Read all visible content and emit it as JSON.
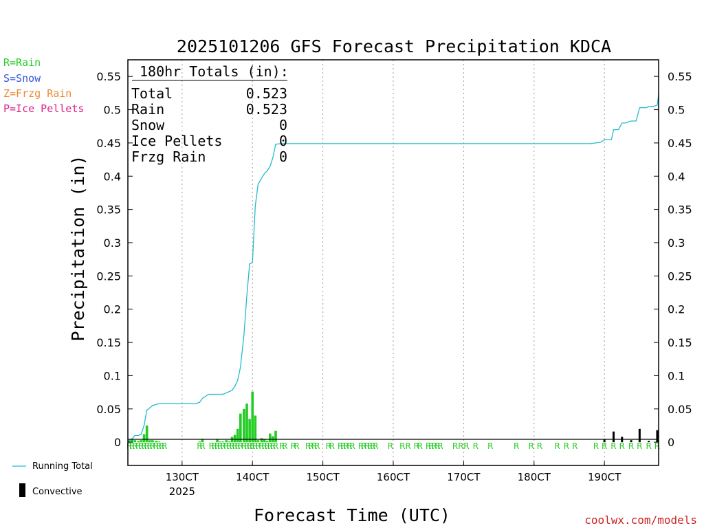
{
  "chart_data": {
    "type": "bar+line",
    "title": "2025101206 GFS Forecast Precipitation KDCA",
    "xlabel": "Forecast Time (UTC)",
    "ylabel": "Precipitation (in)",
    "ylim": [
      -0.035,
      0.575
    ],
    "xlim_days": [
      12.23,
      19.77
    ],
    "yticks": [
      0,
      0.05,
      0.1,
      0.15,
      0.2,
      0.25,
      0.3,
      0.35,
      0.4,
      0.45,
      0.5,
      0.55
    ],
    "ytick_labels": [
      "0",
      "0.05",
      "0.1",
      "0.15",
      "0.2",
      "0.25",
      "0.3",
      "0.35",
      "0.4",
      "0.45",
      "0.5",
      "0.55"
    ],
    "xticks": [
      {
        "day": 13,
        "label": "130CT",
        "sub": "2025"
      },
      {
        "day": 14,
        "label": "140CT",
        "sub": ""
      },
      {
        "day": 15,
        "label": "150CT",
        "sub": ""
      },
      {
        "day": 16,
        "label": "160CT",
        "sub": ""
      },
      {
        "day": 17,
        "label": "170CT",
        "sub": ""
      },
      {
        "day": 18,
        "label": "180CT",
        "sub": ""
      },
      {
        "day": 19,
        "label": "190CT",
        "sub": ""
      }
    ],
    "legend_types": [
      {
        "label": "R=Rain",
        "color": "#22cc22"
      },
      {
        "label": "S=Snow",
        "color": "#3355dd"
      },
      {
        "label": "Z=Frzg Rain",
        "color": "#ee8833"
      },
      {
        "label": "P=Ice Pellets",
        "color": "#dd2288"
      }
    ],
    "legend_series": [
      {
        "label": "Running Total",
        "color": "#22bbcc"
      },
      {
        "label": "Convective",
        "color": "#000000"
      }
    ],
    "totals": {
      "heading": "180hr Totals (in):",
      "rows": [
        {
          "label": "Total",
          "value": "0.523"
        },
        {
          "label": "Rain",
          "value": "0.523"
        },
        {
          "label": "Snow",
          "value": "0"
        },
        {
          "label": "Ice Pellets",
          "value": "0"
        },
        {
          "label": "Frzg Rain",
          "value": "0"
        }
      ]
    },
    "precip_bars": {
      "x_days": [
        12.25,
        12.29,
        12.33,
        12.38,
        12.42,
        12.46,
        12.5,
        12.54,
        12.58,
        12.63,
        12.67,
        13.25,
        13.29,
        13.5,
        13.54,
        13.58,
        13.63,
        13.67,
        13.71,
        13.75,
        13.79,
        13.83,
        13.88,
        13.92,
        13.96,
        14.0,
        14.04,
        14.08,
        14.13,
        14.17,
        14.21,
        14.25,
        14.29,
        14.33
      ],
      "values": [
        0.003,
        0.004,
        0.003,
        0.002,
        0.003,
        0.012,
        0.025,
        0.003,
        0.003,
        0.002,
        0.001,
        0.001,
        0.005,
        0.004,
        0.001,
        0.001,
        0.003,
        0.001,
        0.008,
        0.011,
        0.02,
        0.043,
        0.05,
        0.058,
        0.035,
        0.076,
        0.04,
        0.003,
        0.006,
        0.004,
        0.002,
        0.013,
        0.009,
        0.017
      ]
    },
    "convective_bars": {
      "x_days": [
        19.0,
        19.13,
        19.25,
        19.38,
        19.5,
        19.63,
        19.75
      ],
      "values": [
        0.004,
        0.016,
        0.008,
        0.003,
        0.02,
        0.002,
        0.018
      ]
    },
    "running_total": {
      "x_days": [
        12.23,
        12.29,
        12.33,
        12.38,
        12.42,
        12.46,
        12.5,
        12.58,
        12.67,
        12.75,
        12.83,
        13.0,
        13.13,
        13.2,
        13.25,
        13.29,
        13.38,
        13.5,
        13.58,
        13.67,
        13.71,
        13.75,
        13.79,
        13.83,
        13.88,
        13.92,
        13.96,
        14.0,
        14.04,
        14.08,
        14.13,
        14.17,
        14.21,
        14.25,
        14.29,
        14.33,
        14.4,
        15.0,
        16.0,
        17.0,
        18.0,
        18.8,
        18.95,
        19.0,
        19.1,
        19.13,
        19.2,
        19.25,
        19.3,
        19.38,
        19.45,
        19.5,
        19.6,
        19.63,
        19.7,
        19.75,
        19.77
      ],
      "values": [
        0.001,
        0.005,
        0.01,
        0.01,
        0.012,
        0.025,
        0.048,
        0.055,
        0.058,
        0.058,
        0.058,
        0.058,
        0.058,
        0.058,
        0.06,
        0.066,
        0.072,
        0.072,
        0.072,
        0.076,
        0.078,
        0.084,
        0.093,
        0.113,
        0.162,
        0.22,
        0.268,
        0.27,
        0.355,
        0.388,
        0.397,
        0.404,
        0.408,
        0.415,
        0.428,
        0.448,
        0.449,
        0.449,
        0.449,
        0.449,
        0.449,
        0.449,
        0.451,
        0.455,
        0.455,
        0.47,
        0.47,
        0.48,
        0.48,
        0.483,
        0.483,
        0.503,
        0.503,
        0.505,
        0.505,
        0.507,
        0.523
      ]
    },
    "type_markers": {
      "letter": "R",
      "x_days": [
        12.25,
        12.29,
        12.33,
        12.38,
        12.42,
        12.46,
        12.5,
        12.54,
        12.58,
        12.63,
        12.67,
        12.71,
        12.75,
        13.25,
        13.29,
        13.42,
        13.46,
        13.5,
        13.54,
        13.58,
        13.63,
        13.67,
        13.71,
        13.75,
        13.79,
        13.83,
        13.88,
        13.92,
        13.96,
        14.0,
        14.04,
        14.08,
        14.13,
        14.17,
        14.21,
        14.25,
        14.29,
        14.33,
        14.42,
        14.46,
        14.58,
        14.63,
        14.79,
        14.83,
        14.88,
        14.92,
        15.08,
        15.13,
        15.25,
        15.29,
        15.33,
        15.38,
        15.42,
        15.54,
        15.58,
        15.63,
        15.67,
        15.71,
        15.75,
        15.96,
        16.13,
        16.21,
        16.33,
        16.38,
        16.5,
        16.54,
        16.58,
        16.63,
        16.67,
        16.88,
        16.96,
        17.04,
        17.17,
        17.38,
        17.75,
        17.96,
        18.08,
        18.33,
        18.46,
        18.58,
        18.88,
        19.0,
        19.13,
        19.25,
        19.38,
        19.5,
        19.63,
        19.75
      ]
    }
  },
  "watermark": "coolwx.com/models",
  "colors": {
    "rain": "#22cc22",
    "convective": "#000000",
    "running_total": "#22bbcc",
    "grid": "#999999"
  }
}
